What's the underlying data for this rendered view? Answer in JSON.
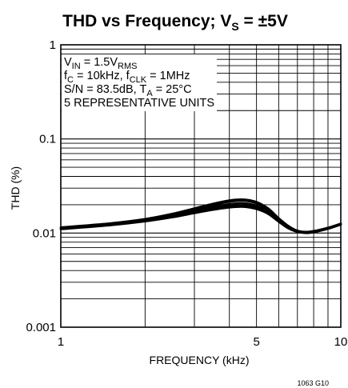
{
  "chart_data": {
    "type": "line",
    "title": {
      "main": "THD vs Frequency; V",
      "sub": "S",
      "tail": " = ±5V"
    },
    "xlabel": "FREQUENCY (kHz)",
    "ylabel": "THD (%)",
    "x_scale": "log",
    "y_scale": "log",
    "xlim": [
      1,
      10
    ],
    "ylim": [
      0.001,
      1
    ],
    "x_ticks": [
      {
        "value": 1,
        "label": "1"
      },
      {
        "value": 5,
        "label": "5"
      },
      {
        "value": 10,
        "label": "10"
      }
    ],
    "y_ticks": [
      {
        "value": 1,
        "label": "1"
      },
      {
        "value": 0.1,
        "label": "0.1"
      },
      {
        "value": 0.01,
        "label": "0.01"
      },
      {
        "value": 0.001,
        "label": "0.001"
      }
    ],
    "grid": true,
    "annotations": [
      {
        "parts": [
          {
            "t": "V"
          },
          {
            "t": "IN",
            "sub": true
          },
          {
            "t": " = 1.5V"
          },
          {
            "t": "RMS",
            "sub": true
          }
        ]
      },
      {
        "parts": [
          {
            "t": "f"
          },
          {
            "t": "C",
            "sub": true
          },
          {
            "t": " = 10kHz, f"
          },
          {
            "t": "CLK",
            "sub": true
          },
          {
            "t": " = 1MHz"
          }
        ]
      },
      {
        "parts": [
          {
            "t": "S/N = 83.5dB, T"
          },
          {
            "t": "A",
            "sub": true
          },
          {
            "t": " = 25°C"
          }
        ]
      },
      {
        "parts": [
          {
            "t": "5 REPRESENTATIVE UNITS"
          }
        ]
      }
    ],
    "series": [
      {
        "x": [
          1,
          1.5,
          2,
          2.5,
          3,
          3.5,
          4,
          4.3,
          4.6,
          5,
          5.5,
          6,
          6.5,
          7,
          7.5,
          8,
          9,
          10
        ],
        "y": [
          0.0115,
          0.0127,
          0.0141,
          0.016,
          0.0183,
          0.0205,
          0.0222,
          0.0227,
          0.0226,
          0.0214,
          0.0183,
          0.0144,
          0.0119,
          0.0106,
          0.0103,
          0.0105,
          0.0114,
          0.0126
        ]
      },
      {
        "x": [
          1,
          1.5,
          2,
          2.5,
          3,
          3.5,
          4,
          4.3,
          4.6,
          5,
          5.5,
          6,
          6.5,
          7,
          7.5,
          8,
          9,
          10
        ],
        "y": [
          0.0113,
          0.0125,
          0.0139,
          0.0157,
          0.0179,
          0.0199,
          0.0215,
          0.022,
          0.0219,
          0.0207,
          0.0178,
          0.0141,
          0.0117,
          0.0105,
          0.0102,
          0.0104,
          0.0113,
          0.0125
        ]
      },
      {
        "x": [
          1,
          1.5,
          2,
          2.5,
          3,
          3.5,
          4,
          4.3,
          4.6,
          5,
          5.5,
          6,
          6.5,
          7,
          7.5,
          8,
          9,
          10
        ],
        "y": [
          0.0112,
          0.0124,
          0.0137,
          0.0153,
          0.0172,
          0.019,
          0.0203,
          0.0207,
          0.0206,
          0.0196,
          0.0171,
          0.0137,
          0.0115,
          0.0104,
          0.0101,
          0.0103,
          0.0112,
          0.0124
        ]
      },
      {
        "x": [
          1,
          1.5,
          2,
          2.5,
          3,
          3.5,
          4,
          4.3,
          4.6,
          5,
          5.5,
          6,
          6.5,
          7,
          7.5,
          8,
          9,
          10
        ],
        "y": [
          0.0111,
          0.0122,
          0.0135,
          0.015,
          0.0167,
          0.0183,
          0.0194,
          0.0197,
          0.0196,
          0.0187,
          0.0164,
          0.0134,
          0.0113,
          0.0103,
          0.0101,
          0.0103,
          0.0112,
          0.0124
        ]
      },
      {
        "x": [
          1,
          1.5,
          2,
          2.5,
          3,
          3.5,
          4,
          4.3,
          4.6,
          5,
          5.5,
          6,
          6.5,
          7,
          7.5,
          8,
          9,
          10
        ],
        "y": [
          0.011,
          0.0121,
          0.0133,
          0.0147,
          0.0163,
          0.0177,
          0.0187,
          0.019,
          0.0189,
          0.018,
          0.016,
          0.0132,
          0.0112,
          0.0103,
          0.01,
          0.0102,
          0.0111,
          0.0123
        ]
      }
    ]
  },
  "figure_code": "1063 G10"
}
